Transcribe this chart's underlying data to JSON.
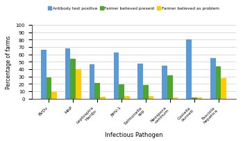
{
  "categories": [
    "BVDv",
    "MAP",
    "Leptospira\nHardjo",
    "BHV-1",
    "Salmonella\nspp",
    "Neospora\ncaninum",
    "Coxiella\nburneti",
    "Fasciola\nhepatica"
  ],
  "antibody_test_positive": [
    66,
    68,
    46,
    62,
    47,
    45,
    80,
    55
  ],
  "farmer_believed_present": [
    29,
    54,
    21,
    19,
    18,
    31,
    1,
    44
  ],
  "farmer_believed_problem": [
    9,
    40,
    2,
    3,
    3,
    1,
    1,
    28
  ],
  "color_antibody": "#5B9BD5",
  "color_present": "#4EA72A",
  "color_problem": "#FFCC00",
  "legend_labels": [
    "Antibody test positive",
    "Farmer believed present",
    "Farmer believed as problem"
  ],
  "xlabel": "Infectious Pathogen",
  "ylabel": "Percentage of farms",
  "ylim": [
    0,
    100
  ],
  "yticks": [
    0,
    10,
    20,
    30,
    40,
    50,
    60,
    70,
    80,
    90,
    100
  ],
  "bar_width": 0.22,
  "figsize": [
    3.5,
    2.05
  ],
  "dpi": 100
}
